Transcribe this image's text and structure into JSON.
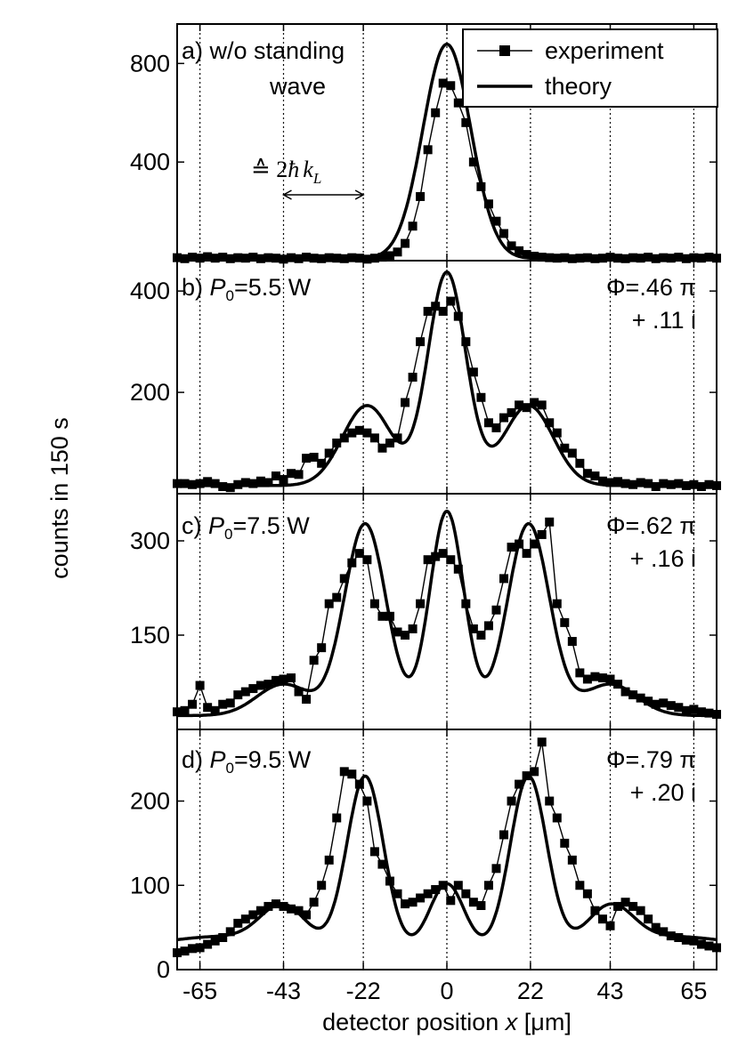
{
  "chart_data": {
    "type": "line",
    "ylabel": "counts in 150 s",
    "xlabel": {
      "prefix": "detector position ",
      "var": "x",
      "unit": " [μm]"
    },
    "xlim": [
      -71,
      71
    ],
    "xticks": [
      -65,
      -43,
      -22,
      0,
      22,
      43,
      65
    ],
    "xtick_labels": [
      "-65",
      "-43",
      "-22",
      "0",
      "22",
      "43",
      "65"
    ],
    "vgrid_style": "dotted",
    "legend": {
      "placement": "top-right",
      "entries": [
        "experiment",
        "theory"
      ]
    },
    "annotation": {
      "text_prefix": "≙ 2",
      "text_hbar": "ħ",
      "text_k": "k",
      "text_sub": "L",
      "x_from": -43,
      "x_to": -22
    },
    "panels": [
      {
        "label_line1": "a) w/o standing",
        "label_line2": "wave",
        "ylim": [
          0,
          960
        ],
        "yticks": [
          400,
          800
        ],
        "ytick_labels": [
          "400",
          "800"
        ],
        "series": [
          {
            "name": "experiment",
            "x": [
              -71,
              -69,
              -67,
              -65,
              -63,
              -61,
              -59,
              -57,
              -55,
              -53,
              -51,
              -49,
              -47,
              -45,
              -43,
              -41,
              -39,
              -37,
              -35,
              -33,
              -31,
              -29,
              -27,
              -25,
              -23,
              -21,
              -19,
              -17,
              -15,
              -13,
              -11,
              -9,
              -7,
              -5,
              -3,
              -1,
              1,
              3,
              5,
              7,
              9,
              11,
              13,
              15,
              17,
              19,
              21,
              23,
              25,
              27,
              29,
              31,
              33,
              35,
              37,
              39,
              41,
              43,
              45,
              47,
              49,
              51,
              53,
              55,
              57,
              59,
              61,
              63,
              65,
              67,
              69,
              71
            ],
            "y": [
              12,
              8,
              14,
              10,
              16,
              10,
              14,
              8,
              12,
              10,
              14,
              8,
              12,
              10,
              6,
              12,
              8,
              14,
              10,
              8,
              12,
              10,
              8,
              12,
              10,
              6,
              10,
              14,
              20,
              35,
              70,
              140,
              260,
              450,
              600,
              720,
              710,
              640,
              560,
              400,
              300,
              230,
              160,
              110,
              60,
              40,
              25,
              18,
              14,
              12,
              10,
              12,
              8,
              10,
              12,
              8,
              10,
              14,
              10,
              8,
              12,
              10,
              14,
              8,
              12,
              10,
              14,
              8,
              12,
              10,
              14,
              10
            ]
          },
          {
            "name": "theory",
            "peaks": [
              {
                "mu": 0,
                "amp": 870,
                "sigma": 6.3
              }
            ],
            "baseline": 8
          }
        ]
      },
      {
        "label_prefix": "b) ",
        "label_var": "P",
        "label_sub": "0",
        "label_suffix": "=5.5 W",
        "phi_line1": "Φ=.46 π",
        "phi_line2": "+ .11 i",
        "ylim": [
          0,
          460
        ],
        "yticks": [
          200,
          400
        ],
        "ytick_labels": [
          "200",
          "400"
        ],
        "series": [
          {
            "name": "experiment",
            "x": [
              -71,
              -69,
              -67,
              -65,
              -63,
              -61,
              -59,
              -57,
              -55,
              -53,
              -51,
              -49,
              -47,
              -45,
              -43,
              -41,
              -39,
              -37,
              -35,
              -33,
              -31,
              -29,
              -27,
              -25,
              -23,
              -21,
              -19,
              -17,
              -15,
              -13,
              -11,
              -9,
              -7,
              -5,
              -3,
              -1,
              1,
              3,
              5,
              7,
              9,
              11,
              13,
              15,
              17,
              19,
              21,
              23,
              25,
              27,
              29,
              31,
              33,
              35,
              37,
              39,
              41,
              43,
              45,
              47,
              49,
              51,
              53,
              55,
              57,
              59,
              61,
              63,
              65,
              67,
              69,
              71
            ],
            "y": [
              20,
              20,
              18,
              20,
              24,
              20,
              14,
              12,
              18,
              22,
              20,
              25,
              22,
              35,
              28,
              40,
              38,
              70,
              72,
              60,
              80,
              100,
              110,
              120,
              125,
              120,
              110,
              90,
              100,
              110,
              180,
              230,
              300,
              360,
              370,
              360,
              380,
              350,
              300,
              240,
              190,
              140,
              130,
              150,
              160,
              175,
              170,
              180,
              175,
              140,
              120,
              90,
              80,
              60,
              40,
              35,
              25,
              22,
              24,
              20,
              18,
              22,
              20,
              14,
              20,
              18,
              20,
              16,
              18,
              14,
              18,
              16
            ]
          },
          {
            "name": "theory",
            "peaks": [
              {
                "mu": 0,
                "amp": 420,
                "sigma": 5.0
              },
              {
                "mu": -21,
                "amp": 158,
                "sigma": 6.5
              },
              {
                "mu": 21.5,
                "amp": 158,
                "sigma": 6.5
              }
            ],
            "baseline": 16
          }
        ]
      },
      {
        "label_prefix": "c) ",
        "label_var": "P",
        "label_sub": "0",
        "label_suffix": "=7.5 W",
        "phi_line1": "Φ=.62 π",
        "phi_line2": "+ .16 i",
        "ylim": [
          0,
          375
        ],
        "yticks": [
          150,
          300
        ],
        "ytick_labels": [
          "150",
          "300"
        ],
        "series": [
          {
            "name": "experiment",
            "x": [
              -71,
              -69,
              -67,
              -65,
              -63,
              -61,
              -59,
              -57,
              -55,
              -53,
              -51,
              -49,
              -47,
              -45,
              -43,
              -41,
              -39,
              -37,
              -35,
              -33,
              -31,
              -29,
              -27,
              -25,
              -23,
              -21,
              -19,
              -17,
              -15,
              -13,
              -11,
              -9,
              -7,
              -5,
              -3,
              -1,
              1,
              3,
              5,
              7,
              9,
              11,
              13,
              15,
              17,
              19,
              21,
              23,
              25,
              27,
              29,
              31,
              33,
              35,
              37,
              39,
              41,
              43,
              45,
              47,
              49,
              51,
              53,
              55,
              57,
              59,
              61,
              63,
              65,
              67,
              69,
              71
            ],
            "y": [
              28,
              30,
              40,
              70,
              35,
              30,
              40,
              42,
              55,
              60,
              65,
              70,
              72,
              78,
              80,
              82,
              60,
              48,
              110,
              130,
              200,
              210,
              240,
              265,
              280,
              270,
              200,
              180,
              180,
              155,
              150,
              160,
              200,
              270,
              275,
              280,
              270,
              255,
              200,
              160,
              150,
              165,
              190,
              240,
              290,
              295,
              280,
              295,
              310,
              330,
              200,
              170,
              140,
              90,
              80,
              84,
              82,
              80,
              72,
              60,
              55,
              50,
              45,
              40,
              42,
              38,
              35,
              30,
              32,
              28,
              26,
              24
            ]
          },
          {
            "name": "theory",
            "peaks": [
              {
                "mu": 0,
                "amp": 325,
                "sigma": 4.5
              },
              {
                "mu": -21.5,
                "amp": 305,
                "sigma": 5.5
              },
              {
                "mu": 21.5,
                "amp": 305,
                "sigma": 5.5
              },
              {
                "mu": -43,
                "amp": 50,
                "sigma": 7.0
              },
              {
                "mu": 43,
                "amp": 50,
                "sigma": 7.0
              }
            ],
            "baseline": 22
          }
        ]
      },
      {
        "label_prefix": "d) ",
        "label_var": "P",
        "label_sub": "0",
        "label_suffix": "=9.5 W",
        "phi_line1": "Φ=.79 π",
        "phi_line2": "+ .20 i",
        "ylim": [
          0,
          285
        ],
        "yticks": [
          0,
          100,
          200
        ],
        "ytick_labels": [
          "0",
          "100",
          "200"
        ],
        "series": [
          {
            "name": "experiment",
            "x": [
              -71,
              -69,
              -67,
              -65,
              -63,
              -61,
              -59,
              -57,
              -55,
              -53,
              -51,
              -49,
              -47,
              -45,
              -43,
              -41,
              -39,
              -37,
              -35,
              -33,
              -31,
              -29,
              -27,
              -25,
              -23,
              -21,
              -19,
              -17,
              -15,
              -13,
              -11,
              -9,
              -7,
              -5,
              -3,
              -1,
              1,
              3,
              5,
              7,
              9,
              11,
              13,
              15,
              17,
              19,
              21,
              23,
              25,
              27,
              29,
              31,
              33,
              35,
              37,
              39,
              41,
              43,
              45,
              47,
              49,
              51,
              53,
              55,
              57,
              59,
              61,
              63,
              65,
              67,
              69,
              71
            ],
            "y": [
              20,
              22,
              25,
              26,
              30,
              34,
              38,
              45,
              55,
              60,
              65,
              70,
              75,
              78,
              75,
              72,
              70,
              65,
              80,
              100,
              130,
              180,
              235,
              232,
              220,
              200,
              140,
              125,
              105,
              90,
              78,
              80,
              85,
              90,
              95,
              100,
              82,
              100,
              90,
              80,
              76,
              100,
              120,
              160,
              200,
              220,
              230,
              235,
              270,
              200,
              180,
              150,
              130,
              100,
              90,
              70,
              60,
              52,
              75,
              80,
              75,
              70,
              60,
              50,
              45,
              40,
              38,
              35,
              34,
              30,
              28,
              26
            ]
          },
          {
            "name": "theory",
            "peaks": [
              {
                "mu": 0,
                "amp": 78,
                "sigma": 4.5
              },
              {
                "mu": -21.5,
                "amp": 205,
                "sigma": 4.8
              },
              {
                "mu": 21.5,
                "amp": 205,
                "sigma": 4.8
              },
              {
                "mu": -43,
                "amp": 46,
                "sigma": 6.0
              },
              {
                "mu": 43,
                "amp": 46,
                "sigma": 6.0
              }
            ],
            "baseline": 24,
            "tail": 15
          }
        ]
      }
    ]
  }
}
